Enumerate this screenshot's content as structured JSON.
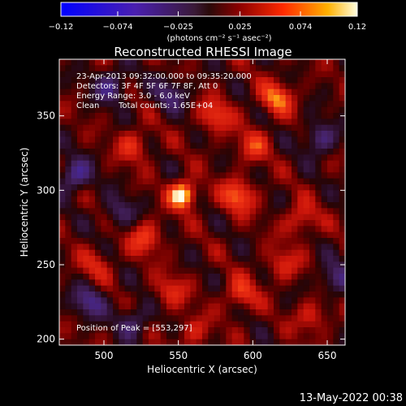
{
  "chart_data": {
    "type": "heatmap",
    "title": "Reconstructed RHESSI Image",
    "xlabel": "Heliocentric X (arcsec)",
    "ylabel": "Heliocentric Y (arcsec)",
    "xlim": [
      470,
      662
    ],
    "ylim": [
      196,
      388
    ],
    "xticks": [
      500,
      550,
      600,
      650
    ],
    "yticks": [
      200,
      250,
      300,
      350
    ],
    "colorbar": {
      "min": -0.12,
      "max": 0.12,
      "ticks": [
        "-0.12",
        "-0.074",
        "-0.025",
        "0.025",
        "0.074",
        "0.12"
      ],
      "units": "(photons cm⁻² s⁻¹ asec⁻²)"
    },
    "peak": {
      "x": 553,
      "y": 297
    },
    "annotations": {
      "time_range": "23-Apr-2013 09:32:00.000 to 09:35:20.000",
      "detectors": "Detectors: 3F 4F 5F 6F 7F 8F, Att 0",
      "energy": "Energy Range: 3.0 - 6.0 keV",
      "clean": "Clean",
      "total_counts": "Total counts: 1.65E+04",
      "peak_label": "Position of Peak = [553,297]"
    },
    "sources": [
      {
        "x": 553,
        "y": 297,
        "value": 0.12
      },
      {
        "x": 590,
        "y": 296,
        "value": 0.075
      },
      {
        "x": 616,
        "y": 362,
        "value": 0.072
      },
      {
        "x": 575,
        "y": 350,
        "value": 0.06
      },
      {
        "x": 528,
        "y": 268,
        "value": 0.06
      },
      {
        "x": 632,
        "y": 280,
        "value": 0.05
      },
      {
        "x": 592,
        "y": 230,
        "value": 0.055
      },
      {
        "x": 520,
        "y": 330,
        "value": 0.05
      },
      {
        "x": 545,
        "y": 232,
        "value": 0.045
      },
      {
        "x": 600,
        "y": 330,
        "value": 0.05
      },
      {
        "x": 640,
        "y": 215,
        "value": 0.045
      },
      {
        "x": 495,
        "y": 250,
        "value": 0.04
      },
      {
        "x": 560,
        "y": 205,
        "value": 0.04
      },
      {
        "x": 620,
        "y": 250,
        "value": 0.045
      },
      {
        "x": 505,
        "y": 370,
        "value": -0.06
      },
      {
        "x": 480,
        "y": 310,
        "value": -0.07
      },
      {
        "x": 545,
        "y": 365,
        "value": -0.05
      },
      {
        "x": 645,
        "y": 335,
        "value": -0.06
      },
      {
        "x": 490,
        "y": 225,
        "value": -0.06
      },
      {
        "x": 520,
        "y": 212,
        "value": -0.05
      },
      {
        "x": 655,
        "y": 240,
        "value": -0.055
      },
      {
        "x": 510,
        "y": 285,
        "value": -0.045
      }
    ]
  },
  "footer": {
    "timestamp": "13-May-2022 00:38"
  }
}
